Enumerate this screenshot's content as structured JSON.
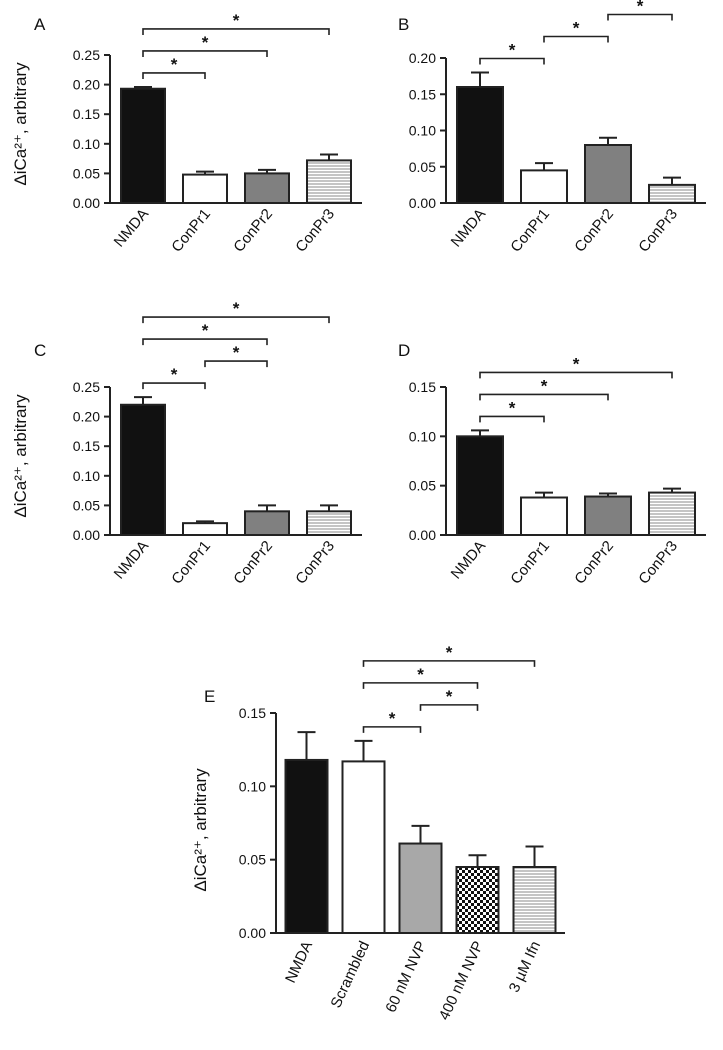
{
  "fills": {
    "black": "#111111",
    "white": "#ffffff",
    "gray": "#808080",
    "lightgray": "#a8a8a8",
    "striped": "#d0d0d0",
    "checker": "#000000"
  },
  "chart_data": [
    {
      "panel": "A",
      "type": "bar",
      "ylabel": "ΔiCa²⁺, arbitrary",
      "ylim": [
        0,
        0.25
      ],
      "yticks": [
        "0.00",
        "0.05",
        "0.10",
        "0.15",
        "0.20",
        "0.25"
      ],
      "categories": [
        "NMDA",
        "ConPr1",
        "ConPr2",
        "ConPr3"
      ],
      "values": [
        0.193,
        0.048,
        0.05,
        0.072
      ],
      "errors": [
        0.003,
        0.005,
        0.006,
        0.01
      ],
      "fills": [
        "black",
        "white",
        "gray",
        "striped"
      ],
      "significance": [
        {
          "from": 0,
          "to": 1,
          "label": "*"
        },
        {
          "from": 0,
          "to": 2,
          "label": "*"
        },
        {
          "from": 0,
          "to": 3,
          "label": "*"
        }
      ]
    },
    {
      "panel": "B",
      "type": "bar",
      "ylabel": "",
      "ylim": [
        0,
        0.2
      ],
      "yticks": [
        "0.00",
        "0.05",
        "0.10",
        "0.15",
        "0.20"
      ],
      "categories": [
        "NMDA",
        "ConPr1",
        "ConPr2",
        "ConPr3"
      ],
      "values": [
        0.16,
        0.045,
        0.08,
        0.025
      ],
      "errors": [
        0.02,
        0.01,
        0.01,
        0.01
      ],
      "fills": [
        "black",
        "white",
        "gray",
        "striped"
      ],
      "significance": [
        {
          "from": 0,
          "to": 1,
          "label": "*"
        },
        {
          "from": 0,
          "to": 2,
          "label": "*"
        },
        {
          "from": 0,
          "to": 3,
          "label": "*"
        },
        {
          "from": 1,
          "to": 2,
          "label": "*"
        },
        {
          "from": 2,
          "to": 3,
          "label": "*"
        }
      ]
    },
    {
      "panel": "C",
      "type": "bar",
      "ylabel": "ΔiCa²⁺, arbitrary",
      "ylim": [
        0,
        0.25
      ],
      "yticks": [
        "0.00",
        "0.05",
        "0.10",
        "0.15",
        "0.20",
        "0.25"
      ],
      "categories": [
        "NMDA",
        "ConPr1",
        "ConPr2",
        "ConPr3"
      ],
      "values": [
        0.22,
        0.02,
        0.04,
        0.04
      ],
      "errors": [
        0.013,
        0.003,
        0.01,
        0.01
      ],
      "fills": [
        "black",
        "white",
        "gray",
        "striped"
      ],
      "significance": [
        {
          "from": 0,
          "to": 1,
          "label": "*"
        },
        {
          "from": 0,
          "to": 2,
          "label": "*"
        },
        {
          "from": 0,
          "to": 3,
          "label": "*"
        },
        {
          "from": 1,
          "to": 2,
          "label": "*"
        }
      ]
    },
    {
      "panel": "D",
      "type": "bar",
      "ylabel": "",
      "ylim": [
        0,
        0.15
      ],
      "yticks": [
        "0.00",
        "0.05",
        "0.10",
        "0.15"
      ],
      "categories": [
        "NMDA",
        "ConPr1",
        "ConPr2",
        "ConPr3"
      ],
      "values": [
        0.1,
        0.038,
        0.039,
        0.043
      ],
      "errors": [
        0.006,
        0.005,
        0.003,
        0.004
      ],
      "fills": [
        "black",
        "white",
        "gray",
        "striped"
      ],
      "significance": [
        {
          "from": 0,
          "to": 1,
          "label": "*"
        },
        {
          "from": 0,
          "to": 2,
          "label": "*"
        },
        {
          "from": 0,
          "to": 3,
          "label": "*"
        }
      ]
    },
    {
      "panel": "E",
      "type": "bar",
      "ylabel": "ΔiCa²⁺, arbitrary",
      "ylim": [
        0,
        0.15
      ],
      "yticks": [
        "0.00",
        "0.05",
        "0.10",
        "0.15"
      ],
      "categories": [
        "NMDA",
        "Scrambled",
        "60 nM NVP",
        "400 nM NVP",
        "3 µM Ifn"
      ],
      "values": [
        0.118,
        0.117,
        0.061,
        0.045,
        0.045
      ],
      "errors": [
        0.019,
        0.014,
        0.012,
        0.008,
        0.014
      ],
      "fills": [
        "black",
        "white",
        "lightgray",
        "checker",
        "striped"
      ],
      "significance": [
        {
          "from": 1,
          "to": 2,
          "label": "*"
        },
        {
          "from": 1,
          "to": 3,
          "label": "*"
        },
        {
          "from": 1,
          "to": 4,
          "label": "*"
        },
        {
          "from": 2,
          "to": 3,
          "label": "*"
        }
      ]
    }
  ]
}
